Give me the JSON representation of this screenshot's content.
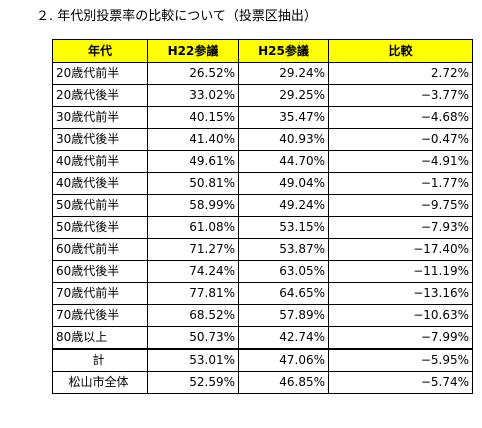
{
  "title": "２. 年代別投票率の比較について（投票区抽出）",
  "table": {
    "headers": [
      "年代",
      "H22参議",
      "H25参議",
      "比較"
    ],
    "rows": [
      {
        "age": "20歳代前半",
        "h22": "26.52%",
        "h25": "29.24%",
        "diff": "2.72%"
      },
      {
        "age": "20歳代後半",
        "h22": "33.02%",
        "h25": "29.25%",
        "diff": "−3.77%"
      },
      {
        "age": "30歳代前半",
        "h22": "40.15%",
        "h25": "35.47%",
        "diff": "−4.68%"
      },
      {
        "age": "30歳代後半",
        "h22": "41.40%",
        "h25": "40.93%",
        "diff": "−0.47%"
      },
      {
        "age": "40歳代前半",
        "h22": "49.61%",
        "h25": "44.70%",
        "diff": "−4.91%"
      },
      {
        "age": "40歳代後半",
        "h22": "50.81%",
        "h25": "49.04%",
        "diff": "−1.77%"
      },
      {
        "age": "50歳代前半",
        "h22": "58.99%",
        "h25": "49.24%",
        "diff": "−9.75%"
      },
      {
        "age": "50歳代後半",
        "h22": "61.08%",
        "h25": "53.15%",
        "diff": "−7.93%"
      },
      {
        "age": "60歳代前半",
        "h22": "71.27%",
        "h25": "53.87%",
        "diff": "−17.40%"
      },
      {
        "age": "60歳代後半",
        "h22": "74.24%",
        "h25": "63.05%",
        "diff": "−11.19%"
      },
      {
        "age": "70歳代前半",
        "h22": "77.81%",
        "h25": "64.65%",
        "diff": "−13.16%"
      },
      {
        "age": "70歳代後半",
        "h22": "68.52%",
        "h25": "57.89%",
        "diff": "−10.63%"
      },
      {
        "age": "80歳以上",
        "h22": "50.73%",
        "h25": "42.74%",
        "diff": "−7.99%"
      }
    ],
    "total": {
      "age": "計",
      "h22": "53.01%",
      "h25": "47.06%",
      "diff": "−5.95%"
    },
    "city": {
      "age": "松山市全体",
      "h22": "52.59%",
      "h25": "46.85%",
      "diff": "−5.74%"
    }
  },
  "colors": {
    "header_bg": "#ffff00",
    "border": "#000000"
  }
}
